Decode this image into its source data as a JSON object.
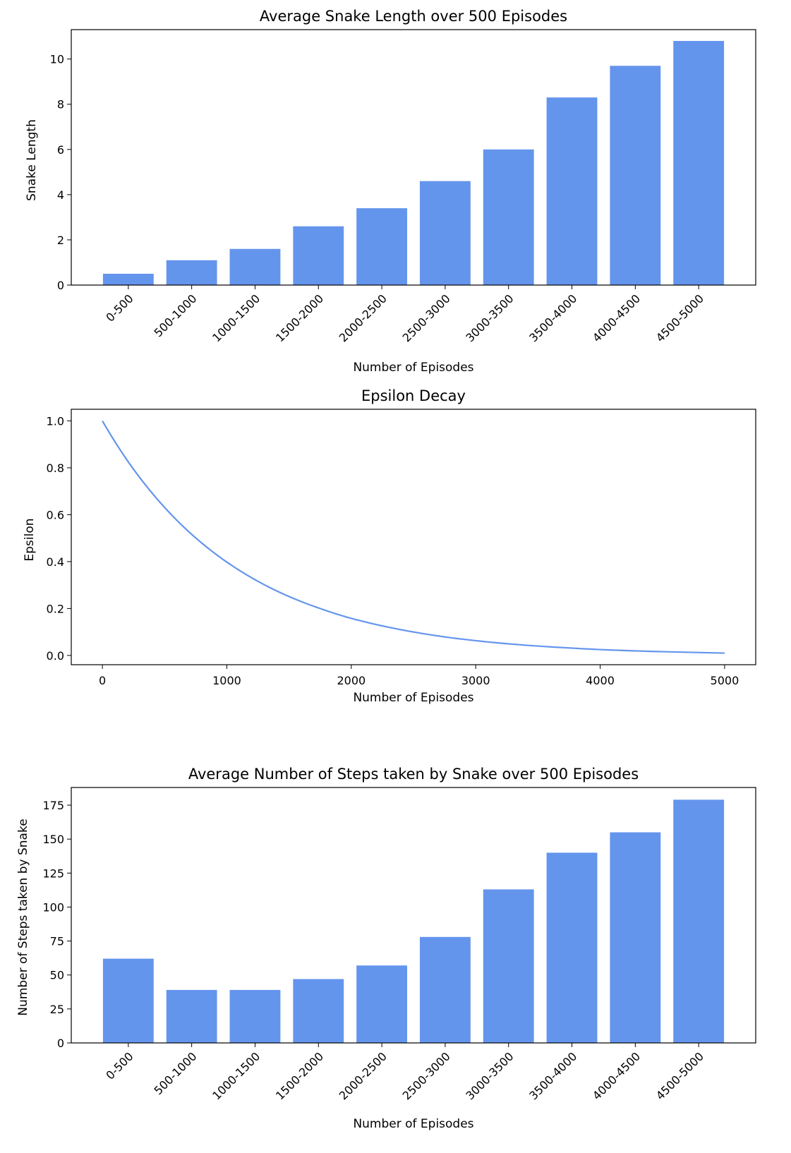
{
  "chart_data": [
    {
      "type": "bar",
      "title": "Average Snake Length over 500 Episodes",
      "xlabel": "Number of Episodes",
      "ylabel": "Snake Length",
      "categories": [
        "0-500",
        "500-1000",
        "1000-1500",
        "1500-2000",
        "2000-2500",
        "2500-3000",
        "3000-3500",
        "3500-4000",
        "4000-4500",
        "4500-5000"
      ],
      "values": [
        0.5,
        1.1,
        1.6,
        2.6,
        3.4,
        4.6,
        6.0,
        8.3,
        9.7,
        10.8
      ],
      "ylim": [
        0,
        11.3
      ],
      "yticks": [
        0,
        2,
        4,
        6,
        8,
        10
      ],
      "ytick_labels": [
        "0",
        "2",
        "4",
        "6",
        "8",
        "10"
      ],
      "color": "#6495ED",
      "grid": false
    },
    {
      "type": "line",
      "title": "Epsilon Decay",
      "xlabel": "Number of Episodes",
      "ylabel": "Epsilon",
      "x": [
        0,
        250,
        500,
        750,
        1000,
        1250,
        1500,
        1750,
        2000,
        2250,
        2500,
        2750,
        3000,
        3250,
        3500,
        3750,
        4000,
        4250,
        4500,
        4750,
        5000
      ],
      "y": [
        1.0,
        0.794,
        0.631,
        0.501,
        0.398,
        0.316,
        0.251,
        0.2,
        0.158,
        0.126,
        0.1,
        0.079,
        0.063,
        0.05,
        0.04,
        0.032,
        0.025,
        0.02,
        0.016,
        0.013,
        0.01
      ],
      "xlim": [
        -250,
        5250
      ],
      "ylim": [
        -0.0395,
        1.0495
      ],
      "xticks": [
        0,
        1000,
        2000,
        3000,
        4000,
        5000
      ],
      "xtick_labels": [
        "0",
        "1000",
        "2000",
        "3000",
        "4000",
        "5000"
      ],
      "yticks": [
        0.0,
        0.2,
        0.4,
        0.6,
        0.8,
        1.0
      ],
      "ytick_labels": [
        "0.0",
        "0.2",
        "0.4",
        "0.6",
        "0.8",
        "1.0"
      ],
      "color": "#6495ED",
      "grid": false
    },
    {
      "type": "bar",
      "title": "Average Number of Steps taken by Snake over 500 Episodes",
      "xlabel": "Number of Episodes",
      "ylabel": "Number of Steps taken by Snake",
      "categories": [
        "0-500",
        "500-1000",
        "1000-1500",
        "1500-2000",
        "2000-2500",
        "2500-3000",
        "3000-3500",
        "3500-4000",
        "4000-4500",
        "4500-5000"
      ],
      "values": [
        62,
        39,
        39,
        47,
        57,
        78,
        113,
        140,
        155,
        179
      ],
      "ylim": [
        0,
        188
      ],
      "yticks": [
        0,
        25,
        50,
        75,
        100,
        125,
        150,
        175
      ],
      "ytick_labels": [
        "0",
        "25",
        "50",
        "75",
        "100",
        "125",
        "150",
        "175"
      ],
      "color": "#6495ED",
      "grid": false
    }
  ]
}
